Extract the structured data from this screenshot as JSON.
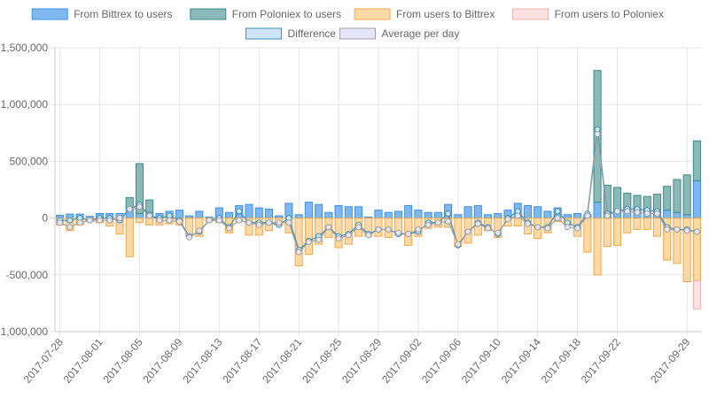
{
  "chart_data": {
    "type": "bar",
    "title": "",
    "xlabel": "",
    "ylabel": "",
    "ylim": [
      -1000000,
      1500000
    ],
    "y_ticks": [
      -1000000,
      -500000,
      0,
      500000,
      1000000,
      1500000
    ],
    "y_tick_labels": [
      "-1,000,000",
      "-500,000",
      "0",
      "500,000",
      "1,000,000",
      "1,500,000"
    ],
    "grid": true,
    "legend_position": "top",
    "stacked": true,
    "x": [
      "2017-07-28",
      "2017-07-29",
      "2017-07-30",
      "2017-07-31",
      "2017-08-01",
      "2017-08-02",
      "2017-08-03",
      "2017-08-04",
      "2017-08-05",
      "2017-08-06",
      "2017-08-07",
      "2017-08-08",
      "2017-08-09",
      "2017-08-10",
      "2017-08-11",
      "2017-08-12",
      "2017-08-13",
      "2017-08-14",
      "2017-08-15",
      "2017-08-16",
      "2017-08-17",
      "2017-08-18",
      "2017-08-19",
      "2017-08-20",
      "2017-08-21",
      "2017-08-22",
      "2017-08-23",
      "2017-08-24",
      "2017-08-25",
      "2017-08-26",
      "2017-08-27",
      "2017-08-28",
      "2017-08-29",
      "2017-08-30",
      "2017-08-31",
      "2017-09-01",
      "2017-09-02",
      "2017-09-03",
      "2017-09-04",
      "2017-09-05",
      "2017-09-06",
      "2017-09-07",
      "2017-09-08",
      "2017-09-09",
      "2017-09-10",
      "2017-09-11",
      "2017-09-12",
      "2017-09-13",
      "2017-09-14",
      "2017-09-15",
      "2017-09-16",
      "2017-09-17",
      "2017-09-18",
      "2017-09-19",
      "2017-09-20",
      "2017-09-21",
      "2017-09-22",
      "2017-09-23",
      "2017-09-24",
      "2017-09-25",
      "2017-09-26",
      "2017-09-27",
      "2017-09-28",
      "2017-09-29",
      "2017-09-30"
    ],
    "x_tick_labels": [
      "2017-07-28",
      "2017-08-01",
      "2017-08-05",
      "2017-08-09",
      "2017-08-13",
      "2017-08-17",
      "2017-08-21",
      "2017-08-25",
      "2017-08-29",
      "2017-09-02",
      "2017-09-06",
      "2017-09-10",
      "2017-09-14",
      "2017-09-18",
      "2017-09-22",
      "2017-09-29"
    ],
    "series": [
      {
        "name": "From Bittrex to users",
        "kind": "bar",
        "fill": "#7fb8f0",
        "stroke": "#3d8fe0",
        "values": [
          25000,
          35000,
          35000,
          15000,
          40000,
          40000,
          40000,
          80000,
          40000,
          50000,
          40000,
          60000,
          70000,
          20000,
          60000,
          10000,
          90000,
          50000,
          110000,
          120000,
          90000,
          80000,
          20000,
          130000,
          30000,
          140000,
          120000,
          50000,
          110000,
          100000,
          100000,
          10000,
          70000,
          50000,
          60000,
          110000,
          70000,
          50000,
          50000,
          120000,
          30000,
          100000,
          110000,
          30000,
          40000,
          70000,
          130000,
          110000,
          100000,
          60000,
          90000,
          30000,
          40000,
          30000,
          140000,
          50000,
          50000,
          60000,
          60000,
          60000,
          70000,
          70000,
          50000,
          30000,
          330000
        ]
      },
      {
        "name": "From Poloniex to users",
        "kind": "bar",
        "fill": "#8ab9b8",
        "stroke": "#3f8a8a",
        "values": [
          0,
          0,
          0,
          0,
          0,
          0,
          0,
          100000,
          440000,
          110000,
          0,
          0,
          0,
          0,
          0,
          0,
          0,
          0,
          0,
          0,
          0,
          0,
          0,
          0,
          0,
          0,
          0,
          0,
          0,
          0,
          0,
          0,
          0,
          0,
          0,
          0,
          0,
          0,
          0,
          0,
          0,
          0,
          0,
          0,
          0,
          0,
          0,
          0,
          0,
          0,
          0,
          0,
          0,
          0,
          1160000,
          240000,
          220000,
          160000,
          140000,
          130000,
          140000,
          210000,
          290000,
          350000,
          350000
        ]
      },
      {
        "name": "From users to Bittrex",
        "kind": "bar",
        "fill": "#fdd9a8",
        "stroke": "#f0a848",
        "values": [
          -60000,
          -110000,
          -60000,
          -30000,
          -40000,
          -70000,
          -140000,
          -340000,
          -40000,
          -60000,
          -60000,
          -50000,
          -60000,
          -160000,
          -160000,
          -30000,
          -40000,
          -130000,
          -30000,
          -150000,
          -150000,
          -110000,
          -60000,
          -130000,
          -420000,
          -320000,
          -230000,
          -170000,
          -260000,
          -230000,
          -160000,
          -160000,
          -160000,
          -170000,
          -150000,
          -240000,
          -160000,
          -90000,
          -80000,
          -80000,
          -250000,
          -220000,
          -150000,
          -110000,
          -170000,
          -70000,
          -70000,
          -140000,
          -180000,
          -130000,
          -30000,
          -60000,
          -160000,
          -300000,
          -500000,
          -250000,
          -240000,
          -130000,
          -100000,
          -100000,
          -160000,
          -370000,
          -400000,
          -560000,
          -550000
        ]
      },
      {
        "name": "From users to Poloniex",
        "kind": "bar",
        "fill": "#fde2e2",
        "stroke": "#f0b0b0",
        "values": [
          0,
          0,
          0,
          0,
          0,
          0,
          0,
          0,
          0,
          0,
          0,
          0,
          0,
          0,
          0,
          0,
          0,
          0,
          0,
          0,
          0,
          0,
          0,
          0,
          0,
          0,
          0,
          0,
          0,
          0,
          0,
          0,
          0,
          0,
          0,
          0,
          0,
          0,
          0,
          0,
          0,
          0,
          0,
          0,
          0,
          0,
          0,
          0,
          0,
          0,
          0,
          0,
          0,
          0,
          0,
          0,
          0,
          0,
          0,
          0,
          0,
          0,
          0,
          0,
          -250000
        ]
      },
      {
        "name": "Difference",
        "kind": "line",
        "fill": "#cfe5f8",
        "stroke": "#3d8fb8",
        "values": [
          -20000,
          -20000,
          0,
          -20000,
          0,
          0,
          -20000,
          80000,
          120000,
          20000,
          0,
          20000,
          -20000,
          -160000,
          -120000,
          -20000,
          0,
          -80000,
          60000,
          -40000,
          -40000,
          -40000,
          -60000,
          0,
          -280000,
          -200000,
          -160000,
          -80000,
          -160000,
          -140000,
          -60000,
          -140000,
          -100000,
          -100000,
          -140000,
          -140000,
          -120000,
          -40000,
          -40000,
          40000,
          -240000,
          -120000,
          -40000,
          -80000,
          -140000,
          0,
          60000,
          -40000,
          -80000,
          -80000,
          60000,
          -40000,
          -80000,
          40000,
          780000,
          40000,
          60000,
          80000,
          80000,
          70000,
          60000,
          -80000,
          -100000,
          -100000,
          -120000
        ]
      },
      {
        "name": "Average per day",
        "kind": "line",
        "fill": "#e6e6fa",
        "stroke": "#a0a0a0",
        "values": [
          -40000,
          -80000,
          -40000,
          -20000,
          -20000,
          -20000,
          0,
          80000,
          100000,
          20000,
          -20000,
          -20000,
          -30000,
          -170000,
          -110000,
          -20000,
          -20000,
          -90000,
          -20000,
          -40000,
          -60000,
          -40000,
          -40000,
          -40000,
          -300000,
          -210000,
          -190000,
          -80000,
          -180000,
          -150000,
          -80000,
          -150000,
          -100000,
          -100000,
          -130000,
          -140000,
          -100000,
          -60000,
          -40000,
          -30000,
          -230000,
          -120000,
          -50000,
          -90000,
          -130000,
          -10000,
          20000,
          -50000,
          -80000,
          -90000,
          0,
          -80000,
          -90000,
          20000,
          740000,
          20000,
          60000,
          60000,
          50000,
          40000,
          40000,
          -100000,
          -100000,
          -110000,
          -120000
        ]
      }
    ]
  }
}
